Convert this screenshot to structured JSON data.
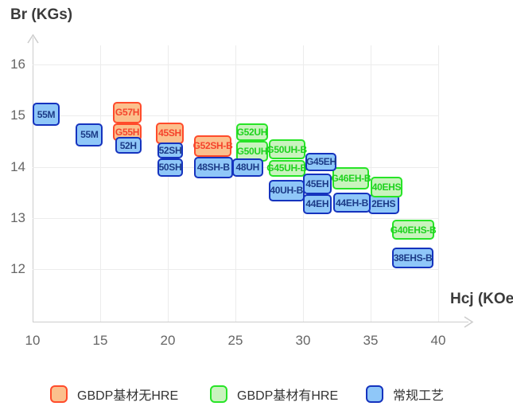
{
  "title": {
    "y_axis": "Br (KGs)",
    "x_axis": "Hcj (KOe)"
  },
  "series": {
    "gbdp_no_hre": {
      "name": "GBDP基材无HRE",
      "fill": "#FBC08D",
      "border": "#FF4B2B",
      "text": "#F5432C"
    },
    "gbdp_hre": {
      "name": "GBDP基材有HRE",
      "fill": "#C9F3BE",
      "border": "#27E427",
      "text": "#1ED21E"
    },
    "conventional": {
      "name": "常规工艺",
      "fill": "#8FC7F8",
      "border": "#1533BE",
      "text": "#1C3B87"
    }
  },
  "legend": [
    {
      "series": "gbdp_no_hre"
    },
    {
      "series": "gbdp_hre"
    },
    {
      "series": "conventional"
    }
  ],
  "chart_data": {
    "type": "labeled-range-boxes",
    "title": "",
    "xlabel": "Hcj (KOe)",
    "ylabel": "Br (KGs)",
    "x_ticks": [
      10,
      15,
      20,
      25,
      30,
      35,
      40
    ],
    "y_ticks": [
      16,
      15,
      14,
      13,
      12
    ],
    "xlim": [
      10,
      42
    ],
    "ylim": [
      11,
      16.6
    ],
    "grid": true,
    "legend_position": "bottom",
    "items": [
      {
        "label": "55M",
        "series": "conventional",
        "hcj": [
          10.0,
          12.0
        ],
        "br": [
          14.8,
          15.25
        ]
      },
      {
        "label": "55M",
        "series": "conventional",
        "hcj": [
          13.2,
          15.2
        ],
        "br": [
          14.4,
          14.85
        ]
      },
      {
        "label": "G57H",
        "series": "gbdp_no_hre",
        "hcj": [
          15.95,
          18.05
        ],
        "br": [
          14.85,
          15.27
        ]
      },
      {
        "label": "G55H",
        "series": "gbdp_no_hre",
        "hcj": [
          15.95,
          18.05
        ],
        "br": [
          14.5,
          14.85
        ]
      },
      {
        "label": "52H",
        "series": "conventional",
        "hcj": [
          16.1,
          18.05
        ],
        "br": [
          14.25,
          14.58
        ]
      },
      {
        "label": "45SH",
        "series": "gbdp_no_hre",
        "hcj": [
          19.1,
          21.2
        ],
        "br": [
          14.45,
          14.87
        ]
      },
      {
        "label": "52SH",
        "series": "conventional",
        "hcj": [
          19.25,
          21.1
        ],
        "br": [
          14.17,
          14.47
        ]
      },
      {
        "label": "50SH",
        "series": "conventional",
        "hcj": [
          19.25,
          21.1
        ],
        "br": [
          13.8,
          14.17
        ]
      },
      {
        "label": "G52SH-B",
        "series": "gbdp_no_hre",
        "hcj": [
          21.95,
          24.7
        ],
        "br": [
          14.2,
          14.62
        ]
      },
      {
        "label": "48SH-B",
        "series": "conventional",
        "hcj": [
          21.95,
          24.8
        ],
        "br": [
          13.78,
          14.2
        ]
      },
      {
        "label": "G52UH",
        "series": "gbdp_hre",
        "hcj": [
          25.05,
          27.4
        ],
        "br": [
          14.5,
          14.85
        ]
      },
      {
        "label": "G50UH",
        "series": "gbdp_hre",
        "hcj": [
          25.05,
          27.4
        ],
        "br": [
          14.1,
          14.5
        ]
      },
      {
        "label": "48UH",
        "series": "conventional",
        "hcj": [
          24.75,
          27.05
        ],
        "br": [
          13.8,
          14.17
        ]
      },
      {
        "label": "G50UH-B",
        "series": "gbdp_hre",
        "hcj": [
          27.45,
          30.15
        ],
        "br": [
          14.14,
          14.53
        ]
      },
      {
        "label": "G45UH-B",
        "series": "gbdp_hre",
        "hcj": [
          27.45,
          30.15
        ],
        "br": [
          13.8,
          14.14
        ]
      },
      {
        "label": "40UH-B",
        "series": "conventional",
        "hcj": [
          27.45,
          30.1
        ],
        "br": [
          13.33,
          13.75
        ]
      },
      {
        "label": "G45EH",
        "series": "conventional",
        "hcj": [
          30.2,
          32.5
        ],
        "br": [
          13.92,
          14.28
        ]
      },
      {
        "label": "45EH",
        "series": "conventional",
        "hcj": [
          30.0,
          32.1
        ],
        "br": [
          13.47,
          13.86
        ]
      },
      {
        "label": "44EH",
        "series": "conventional",
        "hcj": [
          30.0,
          32.1
        ],
        "br": [
          13.08,
          13.46
        ]
      },
      {
        "label": "G46EH-B",
        "series": "gbdp_hre",
        "hcj": [
          32.2,
          34.9
        ],
        "br": [
          13.55,
          14.0
        ]
      },
      {
        "label": "44EH-B",
        "series": "conventional",
        "hcj": [
          32.25,
          35.0
        ],
        "br": [
          13.1,
          13.49
        ],
        "z": 5
      },
      {
        "label": "40EHS",
        "series": "gbdp_hre",
        "hcj": [
          35.0,
          37.35
        ],
        "br": [
          13.4,
          13.8
        ],
        "z": 4
      },
      {
        "label": "2EHS",
        "series": "conventional",
        "hcj": [
          34.8,
          37.1
        ],
        "br": [
          13.08,
          13.46
        ]
      },
      {
        "label": "G40EHS-B",
        "series": "gbdp_hre",
        "hcj": [
          36.6,
          39.7
        ],
        "br": [
          12.57,
          12.96
        ]
      },
      {
        "label": "38EHS-B",
        "series": "conventional",
        "hcj": [
          36.6,
          39.65
        ],
        "br": [
          12.02,
          12.42
        ]
      }
    ]
  }
}
